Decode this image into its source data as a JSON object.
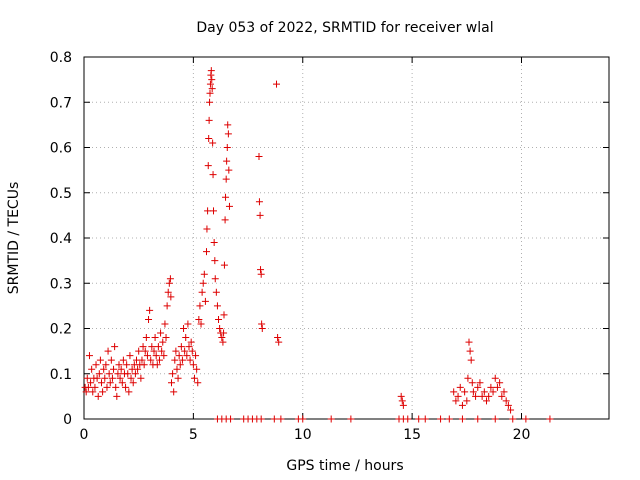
{
  "chart_data": {
    "type": "scatter",
    "title": "Day 053 of 2022, SRMTID for receiver wlal",
    "xlabel": "GPS time / hours",
    "ylabel": "SRMTID / TECUs",
    "xlim": [
      0,
      24
    ],
    "ylim": [
      0,
      0.8
    ],
    "x_ticks": [
      "0",
      "5",
      "10",
      "15",
      "20"
    ],
    "y_ticks": [
      "0",
      "0.1",
      "0.2",
      "0.3",
      "0.4",
      "0.5",
      "0.6",
      "0.7",
      "0.8"
    ],
    "grid": true,
    "marker": "+",
    "series": [
      {
        "name": "SRMTID",
        "color": "#dd0000",
        "points": [
          [
            0.05,
            0.07
          ],
          [
            0.1,
            0.06
          ],
          [
            0.15,
            0.09
          ],
          [
            0.2,
            0.07
          ],
          [
            0.25,
            0.14
          ],
          [
            0.3,
            0.08
          ],
          [
            0.35,
            0.11
          ],
          [
            0.4,
            0.06
          ],
          [
            0.45,
            0.09
          ],
          [
            0.5,
            0.07
          ],
          [
            0.55,
            0.12
          ],
          [
            0.6,
            0.09
          ],
          [
            0.65,
            0.05
          ],
          [
            0.7,
            0.1
          ],
          [
            0.75,
            0.13
          ],
          [
            0.8,
            0.08
          ],
          [
            0.85,
            0.06
          ],
          [
            0.9,
            0.11
          ],
          [
            0.95,
            0.09
          ],
          [
            1.0,
            0.12
          ],
          [
            1.05,
            0.07
          ],
          [
            1.1,
            0.15
          ],
          [
            1.15,
            0.1
          ],
          [
            1.2,
            0.08
          ],
          [
            1.25,
            0.13
          ],
          [
            1.3,
            0.09
          ],
          [
            1.35,
            0.11
          ],
          [
            1.4,
            0.16
          ],
          [
            1.45,
            0.07
          ],
          [
            1.5,
            0.05
          ],
          [
            1.55,
            0.1
          ],
          [
            1.6,
            0.12
          ],
          [
            1.65,
            0.09
          ],
          [
            1.7,
            0.11
          ],
          [
            1.75,
            0.08
          ],
          [
            1.8,
            0.13
          ],
          [
            1.85,
            0.1
          ],
          [
            1.9,
            0.07
          ],
          [
            1.95,
            0.12
          ],
          [
            2.0,
            0.1
          ],
          [
            2.05,
            0.06
          ],
          [
            2.1,
            0.14
          ],
          [
            2.15,
            0.09
          ],
          [
            2.2,
            0.11
          ],
          [
            2.25,
            0.08
          ],
          [
            2.3,
            0.12
          ],
          [
            2.35,
            0.1
          ],
          [
            2.4,
            0.13
          ],
          [
            2.45,
            0.11
          ],
          [
            2.5,
            0.15
          ],
          [
            2.55,
            0.12
          ],
          [
            2.6,
            0.09
          ],
          [
            2.65,
            0.13
          ],
          [
            2.7,
            0.16
          ],
          [
            2.75,
            0.12
          ],
          [
            2.8,
            0.15
          ],
          [
            2.85,
            0.18
          ],
          [
            2.9,
            0.14
          ],
          [
            2.95,
            0.22
          ],
          [
            3.0,
            0.24
          ],
          [
            3.05,
            0.13
          ],
          [
            3.1,
            0.16
          ],
          [
            3.15,
            0.12
          ],
          [
            3.2,
            0.15
          ],
          [
            3.25,
            0.18
          ],
          [
            3.3,
            0.14
          ],
          [
            3.35,
            0.12
          ],
          [
            3.4,
            0.16
          ],
          [
            3.45,
            0.13
          ],
          [
            3.5,
            0.19
          ],
          [
            3.55,
            0.15
          ],
          [
            3.6,
            0.17
          ],
          [
            3.65,
            0.14
          ],
          [
            3.7,
            0.21
          ],
          [
            3.75,
            0.18
          ],
          [
            3.8,
            0.25
          ],
          [
            3.85,
            0.28
          ],
          [
            3.9,
            0.3
          ],
          [
            3.95,
            0.31
          ],
          [
            3.97,
            0.27
          ],
          [
            4.0,
            0.08
          ],
          [
            4.05,
            0.1
          ],
          [
            4.1,
            0.06
          ],
          [
            4.15,
            0.13
          ],
          [
            4.2,
            0.15
          ],
          [
            4.25,
            0.11
          ],
          [
            4.3,
            0.09
          ],
          [
            4.35,
            0.14
          ],
          [
            4.4,
            0.12
          ],
          [
            4.45,
            0.16
          ],
          [
            4.5,
            0.13
          ],
          [
            4.55,
            0.2
          ],
          [
            4.6,
            0.15
          ],
          [
            4.65,
            0.18
          ],
          [
            4.7,
            0.14
          ],
          [
            4.75,
            0.21
          ],
          [
            4.8,
            0.16
          ],
          [
            4.85,
            0.13
          ],
          [
            4.9,
            0.17
          ],
          [
            4.95,
            0.15
          ],
          [
            5.0,
            0.12
          ],
          [
            5.05,
            0.09
          ],
          [
            5.1,
            0.14
          ],
          [
            5.15,
            0.11
          ],
          [
            5.2,
            0.08
          ],
          [
            5.25,
            0.22
          ],
          [
            5.3,
            0.25
          ],
          [
            5.35,
            0.21
          ],
          [
            5.4,
            0.28
          ],
          [
            5.45,
            0.3
          ],
          [
            5.5,
            0.32
          ],
          [
            5.55,
            0.26
          ],
          [
            5.6,
            0.37
          ],
          [
            5.62,
            0.42
          ],
          [
            5.65,
            0.46
          ],
          [
            5.68,
            0.56
          ],
          [
            5.7,
            0.62
          ],
          [
            5.72,
            0.66
          ],
          [
            5.74,
            0.7
          ],
          [
            5.76,
            0.72
          ],
          [
            5.78,
            0.74
          ],
          [
            5.8,
            0.76
          ],
          [
            5.82,
            0.77
          ],
          [
            5.84,
            0.75
          ],
          [
            5.86,
            0.73
          ],
          [
            5.88,
            0.61
          ],
          [
            5.9,
            0.54
          ],
          [
            5.92,
            0.46
          ],
          [
            5.95,
            0.39
          ],
          [
            5.98,
            0.35
          ],
          [
            6.0,
            0.31
          ],
          [
            6.05,
            0.28
          ],
          [
            6.1,
            0.25
          ],
          [
            6.15,
            0.22
          ],
          [
            6.2,
            0.2
          ],
          [
            6.25,
            0.19
          ],
          [
            6.3,
            0.18
          ],
          [
            6.35,
            0.17
          ],
          [
            6.38,
            0.19
          ],
          [
            6.4,
            0.23
          ],
          [
            6.42,
            0.34
          ],
          [
            6.45,
            0.44
          ],
          [
            6.47,
            0.49
          ],
          [
            6.5,
            0.53
          ],
          [
            6.52,
            0.57
          ],
          [
            6.55,
            0.6
          ],
          [
            6.57,
            0.65
          ],
          [
            6.6,
            0.63
          ],
          [
            6.62,
            0.55
          ],
          [
            6.65,
            0.47
          ],
          [
            8.0,
            0.58
          ],
          [
            8.02,
            0.48
          ],
          [
            8.05,
            0.45
          ],
          [
            8.07,
            0.33
          ],
          [
            8.1,
            0.32
          ],
          [
            8.12,
            0.21
          ],
          [
            8.15,
            0.2
          ],
          [
            8.8,
            0.74
          ],
          [
            8.85,
            0.18
          ],
          [
            8.9,
            0.17
          ],
          [
            14.5,
            0.05
          ],
          [
            14.55,
            0.04
          ],
          [
            14.6,
            0.03
          ],
          [
            16.9,
            0.06
          ],
          [
            17.0,
            0.04
          ],
          [
            17.1,
            0.05
          ],
          [
            17.2,
            0.07
          ],
          [
            17.3,
            0.03
          ],
          [
            17.4,
            0.06
          ],
          [
            17.5,
            0.04
          ],
          [
            17.55,
            0.09
          ],
          [
            17.6,
            0.17
          ],
          [
            17.65,
            0.15
          ],
          [
            17.7,
            0.13
          ],
          [
            17.75,
            0.08
          ],
          [
            17.8,
            0.06
          ],
          [
            17.9,
            0.05
          ],
          [
            18.0,
            0.07
          ],
          [
            18.1,
            0.08
          ],
          [
            18.2,
            0.05
          ],
          [
            18.3,
            0.06
          ],
          [
            18.4,
            0.04
          ],
          [
            18.5,
            0.05
          ],
          [
            18.6,
            0.07
          ],
          [
            18.7,
            0.06
          ],
          [
            18.8,
            0.09
          ],
          [
            18.9,
            0.07
          ],
          [
            19.0,
            0.08
          ],
          [
            19.1,
            0.05
          ],
          [
            19.2,
            0.06
          ],
          [
            19.3,
            0.04
          ],
          [
            19.4,
            0.03
          ],
          [
            19.5,
            0.02
          ],
          [
            6.1,
            0.0
          ],
          [
            6.3,
            0.0
          ],
          [
            6.5,
            0.0
          ],
          [
            6.7,
            0.0
          ],
          [
            7.3,
            0.0
          ],
          [
            7.5,
            0.0
          ],
          [
            7.7,
            0.0
          ],
          [
            7.9,
            0.0
          ],
          [
            8.1,
            0.0
          ],
          [
            8.7,
            0.0
          ],
          [
            9.0,
            0.0
          ],
          [
            9.8,
            0.0
          ],
          [
            10.0,
            0.0
          ],
          [
            11.3,
            0.0
          ],
          [
            12.2,
            0.0
          ],
          [
            14.4,
            0.0
          ],
          [
            14.6,
            0.0
          ],
          [
            14.8,
            0.0
          ],
          [
            15.3,
            0.0
          ],
          [
            15.6,
            0.0
          ],
          [
            16.3,
            0.0
          ],
          [
            16.7,
            0.0
          ],
          [
            17.3,
            0.0
          ],
          [
            18.0,
            0.0
          ],
          [
            18.8,
            0.0
          ],
          [
            19.6,
            0.0
          ],
          [
            20.2,
            0.0
          ],
          [
            21.3,
            0.0
          ]
        ]
      }
    ]
  }
}
